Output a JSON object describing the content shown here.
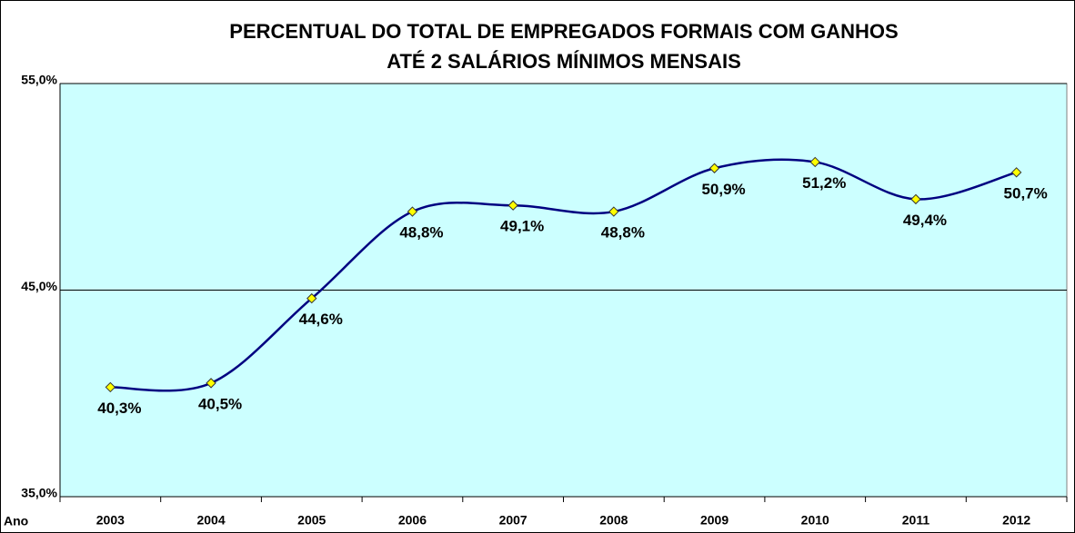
{
  "chart_data": {
    "type": "line",
    "title": [
      "PERCENTUAL DO TOTAL DE EMPREGADOS FORMAIS COM GANHOS",
      "ATÉ 2 SALÁRIOS MÍNIMOS MENSAIS"
    ],
    "x_label": "Ano",
    "categories": [
      "2003",
      "2004",
      "2005",
      "2006",
      "2007",
      "2008",
      "2009",
      "2010",
      "2011",
      "2012"
    ],
    "series": [
      {
        "name": "Percentual",
        "color": "#000080",
        "marker_color": "#ffff00",
        "values": [
          40.3,
          40.5,
          44.6,
          48.8,
          49.1,
          48.8,
          50.9,
          51.2,
          49.4,
          50.7
        ],
        "value_labels": [
          "40,3%",
          "40,5%",
          "44,6%",
          "48,8%",
          "49,1%",
          "48,8%",
          "50,9%",
          "51,2%",
          "49,4%",
          "50,7%"
        ]
      }
    ],
    "ylim": [
      35,
      55
    ],
    "yticks": [
      {
        "value": 35,
        "label": "35,0%"
      },
      {
        "value": 45,
        "label": "45,0%"
      },
      {
        "value": 55,
        "label": "55,0%"
      }
    ],
    "grid": true,
    "plot_background": "#ccffff"
  }
}
